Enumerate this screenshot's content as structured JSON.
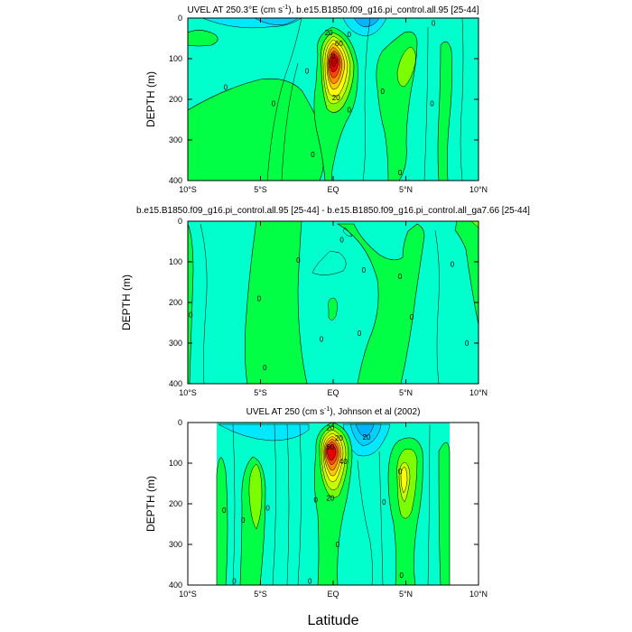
{
  "figure": {
    "xlabel": "Latitude"
  },
  "chart_data": [
    {
      "type": "contour",
      "title_plain": "UVEL AT 250.3°E (cm s",
      "title_sup": "-1",
      "title_tail": "), b.e15.B1850.f09_g16.pi_control.all.95 [25-44]",
      "ylabel": "DEPTH (m)",
      "xlim": [
        -10,
        10
      ],
      "ylim": [
        400,
        0
      ],
      "x_ticks": [
        -10,
        -5,
        0,
        5,
        10
      ],
      "x_tick_labels": [
        "10°S",
        "5°S",
        "EQ",
        "5°N",
        "10°N"
      ],
      "y_ticks": [
        0,
        100,
        200,
        300,
        400
      ],
      "y_tick_labels": [
        "0",
        "100",
        "200",
        "300",
        "400"
      ],
      "data_coverage": {
        "lat": [
          -10,
          10
        ]
      },
      "contour_labels": [
        {
          "text": "0",
          "lat": -7.4,
          "depth": 170
        },
        {
          "text": "0",
          "lat": -4.1,
          "depth": 210
        },
        {
          "text": "0",
          "lat": -1.8,
          "depth": 130
        },
        {
          "text": "0",
          "lat": -1.4,
          "depth": 335
        },
        {
          "text": "0",
          "lat": 1.1,
          "depth": 40
        },
        {
          "text": "0",
          "lat": 1.1,
          "depth": 225
        },
        {
          "text": "0",
          "lat": 3.4,
          "depth": 180
        },
        {
          "text": "0",
          "lat": 4.6,
          "depth": 380
        },
        {
          "text": "0",
          "lat": 6.9,
          "depth": 12
        },
        {
          "text": "0",
          "lat": 6.8,
          "depth": 210
        },
        {
          "text": "20",
          "lat": -0.3,
          "depth": 35
        },
        {
          "text": "60",
          "lat": 0.4,
          "depth": 62
        },
        {
          "text": "0",
          "lat": 0.0,
          "depth": 92
        },
        {
          "text": "20",
          "lat": 0.2,
          "depth": 195
        }
      ]
    },
    {
      "type": "contour",
      "title_plain": "b.e15.B1850.f09_g16.pi_control.all.95 [25-44] - b.e15.B1850.f09_g16.pi_control.all_ga7.66 [25-44]",
      "title_sup": "",
      "title_tail": "",
      "ylabel": "DEPTH (m)",
      "xlim": [
        -10,
        10
      ],
      "ylim": [
        400,
        0
      ],
      "x_ticks": [
        -10,
        -5,
        0,
        5,
        10
      ],
      "x_tick_labels": [
        "10°S",
        "5°S",
        "EQ",
        "5°N",
        "10°N"
      ],
      "y_ticks": [
        0,
        100,
        200,
        300,
        400
      ],
      "y_tick_labels": [
        "0",
        "100",
        "200",
        "300",
        "400"
      ],
      "data_coverage": {
        "lat": [
          -10,
          10
        ]
      },
      "contour_labels": [
        {
          "text": "0",
          "lat": -9.8,
          "depth": 230
        },
        {
          "text": "0",
          "lat": -5.1,
          "depth": 190
        },
        {
          "text": "0",
          "lat": -4.7,
          "depth": 360
        },
        {
          "text": "0",
          "lat": -2.4,
          "depth": 95
        },
        {
          "text": "0",
          "lat": -0.8,
          "depth": 290
        },
        {
          "text": "0",
          "lat": 0.6,
          "depth": 45
        },
        {
          "text": "0",
          "lat": 2.1,
          "depth": 120
        },
        {
          "text": "0",
          "lat": 1.8,
          "depth": 275
        },
        {
          "text": "0",
          "lat": 4.6,
          "depth": 135
        },
        {
          "text": "0",
          "lat": 5.4,
          "depth": 235
        },
        {
          "text": "0",
          "lat": 8.2,
          "depth": 105
        },
        {
          "text": "0",
          "lat": 9.2,
          "depth": 300
        }
      ]
    },
    {
      "type": "contour",
      "title_plain": "UVEL AT 250 (cm s",
      "title_sup": "-1",
      "title_tail": "), Johnson et al (2002)",
      "ylabel": "DEPTH (m)",
      "xlim": [
        -10,
        10
      ],
      "ylim": [
        400,
        0
      ],
      "x_ticks": [
        -10,
        -5,
        0,
        5,
        10
      ],
      "x_tick_labels": [
        "10°S",
        "5°S",
        "EQ",
        "5°N",
        "10°N"
      ],
      "y_ticks": [
        0,
        100,
        200,
        300,
        400
      ],
      "y_tick_labels": [
        "0",
        "100",
        "200",
        "300",
        "400"
      ],
      "data_coverage": {
        "lat": [
          -8,
          8.2
        ]
      },
      "contour_labels": [
        {
          "text": "0",
          "lat": -7.5,
          "depth": 215
        },
        {
          "text": "0",
          "lat": -6.2,
          "depth": 240
        },
        {
          "text": "0",
          "lat": -4.5,
          "depth": 210
        },
        {
          "text": "0",
          "lat": -6.8,
          "depth": 390
        },
        {
          "text": "0",
          "lat": -1.2,
          "depth": 190
        },
        {
          "text": "0",
          "lat": -1.6,
          "depth": 390
        },
        {
          "text": "20",
          "lat": -0.2,
          "depth": 12
        },
        {
          "text": "20",
          "lat": 0.4,
          "depth": 38
        },
        {
          "text": "60",
          "lat": -0.2,
          "depth": 60
        },
        {
          "text": "40",
          "lat": 0.7,
          "depth": 95
        },
        {
          "text": "20",
          "lat": 2.3,
          "depth": 35
        },
        {
          "text": "20",
          "lat": -0.2,
          "depth": 185
        },
        {
          "text": "0",
          "lat": 0.3,
          "depth": 300
        },
        {
          "text": "0",
          "lat": 3.5,
          "depth": 195
        },
        {
          "text": "0",
          "lat": 4.6,
          "depth": 120
        },
        {
          "text": "0",
          "lat": 4.7,
          "depth": 375
        }
      ]
    }
  ]
}
